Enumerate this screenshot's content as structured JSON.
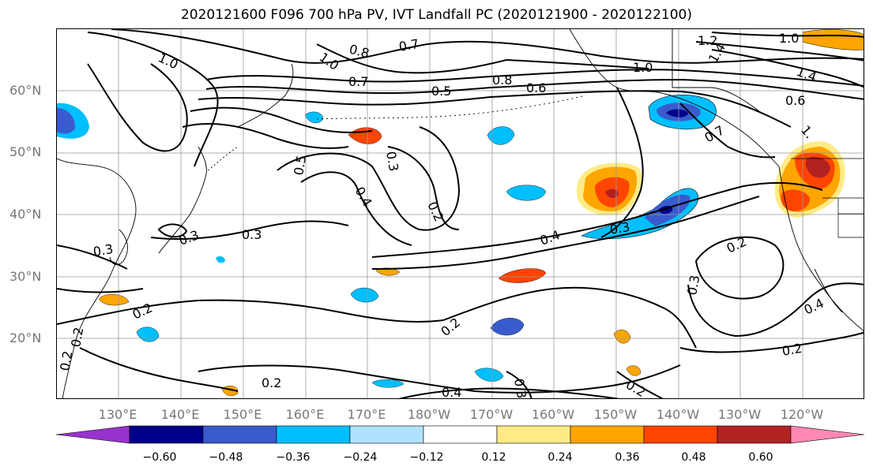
{
  "title": "2020121600 F096 700 hPa PV, IVT Landfall PC (2020121900 - 2020122100)",
  "lat_labels": [
    "60°N",
    "50°N",
    "40°N",
    "30°N",
    "20°N"
  ],
  "lon_labels": [
    "130°E",
    "140°E",
    "150°E",
    "160°E",
    "170°E",
    "180°W",
    "170°W",
    "160°W",
    "150°W",
    "140°W",
    "130°W",
    "120°W"
  ],
  "contour_labels": [
    "1.0",
    "0.8",
    "0.7",
    "1.0",
    "1.0",
    "1.2",
    "1.4",
    "1.0",
    "1.4",
    "0.7",
    "0.8",
    "0.5",
    "0.6",
    "0.6",
    "0.7",
    "1.",
    "0.5",
    "0.4",
    "0.3",
    "0.2",
    "0.3",
    "0.3",
    "0.4",
    "0.3",
    "0.2",
    "0.3",
    "0.2",
    "0.4",
    "0.2",
    "0.2",
    "0.2",
    "0.2",
    "0.4",
    "0.3",
    "0.2",
    "0.3",
    "0.2"
  ],
  "colorbar": {
    "colors": [
      "#9932CC",
      "#00008B",
      "#3A5BCC",
      "#00BFFF",
      "#B0E2FF",
      "#FFFFFF",
      "#FFEB86",
      "#FFA500",
      "#FF4500",
      "#B22222",
      "#FF88B4"
    ],
    "ticks": [
      "−0.60",
      "−0.48",
      "−0.36",
      "−0.24",
      "−0.12",
      "0.12",
      "0.24",
      "0.36",
      "0.48",
      "0.60"
    ]
  }
}
